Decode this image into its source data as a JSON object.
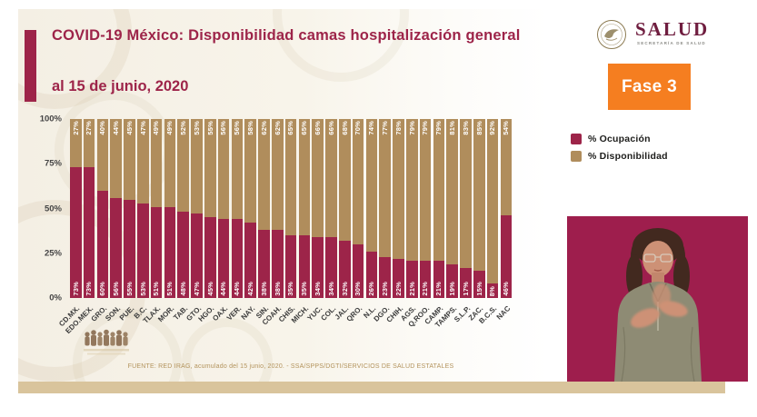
{
  "slide": {
    "title": "COVID-19 México: Disponibilidad camas hospitalización general",
    "subtitle": "al 15 de junio, 2020",
    "accent_color": "#9d2449",
    "footer_source": "FUENTE: RED IRAG, acumulado del 15 junio, 2020. -  SSA/SPPS/DGTI/SERVICIOS DE SALUD ESTATALES"
  },
  "header_right": {
    "logo_word": "SALUD",
    "logo_subtext": "SECRETARÍA DE SALUD",
    "phase_badge": "Fase 3",
    "phase_color": "#f57e20"
  },
  "legend": {
    "items": [
      {
        "label": "% Ocupación",
        "color": "#9d2449"
      },
      {
        "label": "% Disponibilidad",
        "color": "#b08d5c"
      }
    ]
  },
  "interpreter": {
    "background": "#9e1e4d"
  },
  "chart_data": {
    "type": "bar",
    "stacked": true,
    "title": "Disponibilidad camas hospitalización general al 15 de junio, 2020",
    "categories": [
      "CD.MX.",
      "EDO.MEX.",
      "GRO.",
      "SON.",
      "PUE.",
      "B.C.",
      "TLAX.",
      "MOR.",
      "TAB.",
      "GTO.",
      "HGO.",
      "OAX.",
      "VER.",
      "NAY.",
      "SIN.",
      "COAH.",
      "CHIS.",
      "MICH.",
      "YUC.",
      "COL.",
      "JAL.",
      "QRO.",
      "N.L.",
      "DGO.",
      "CHIH.",
      "AGS.",
      "Q.ROO.",
      "CAMP.",
      "TAMPS.",
      "S.L.P.",
      "ZAC.",
      "B.C.S.",
      "NAC"
    ],
    "series": [
      {
        "name": "% Ocupación",
        "color": "#9d2449",
        "values": [
          73,
          73,
          60,
          56,
          55,
          53,
          51,
          51,
          48,
          47,
          45,
          44,
          44,
          42,
          38,
          38,
          35,
          35,
          34,
          34,
          32,
          30,
          26,
          23,
          22,
          21,
          21,
          21,
          19,
          17,
          15,
          8,
          46
        ]
      },
      {
        "name": "% Disponibilidad",
        "color": "#b08d5c",
        "values": [
          27,
          27,
          40,
          44,
          45,
          47,
          49,
          49,
          52,
          53,
          55,
          56,
          56,
          58,
          62,
          62,
          65,
          65,
          66,
          66,
          68,
          70,
          74,
          77,
          78,
          79,
          79,
          79,
          81,
          83,
          85,
          92,
          54
        ]
      }
    ],
    "y_ticks": [
      "100%",
      "75%",
      "50%",
      "25%",
      "0%"
    ],
    "ylim": [
      0,
      100
    ],
    "grid": false,
    "legend_position": "right",
    "value_label_format": "{v}%"
  }
}
